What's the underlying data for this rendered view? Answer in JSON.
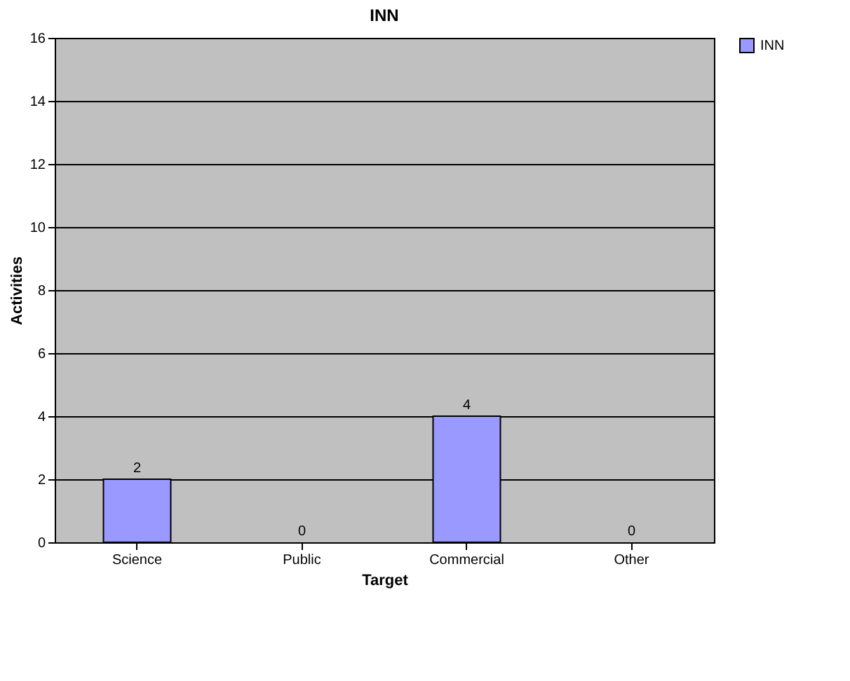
{
  "chart_data": {
    "type": "bar",
    "title": "INN",
    "xlabel": "Target",
    "ylabel": "Activities",
    "categories": [
      "Science",
      "Public",
      "Commercial",
      "Other"
    ],
    "series": [
      {
        "name": "INN",
        "color": "#9999ff",
        "values": [
          2,
          0,
          4,
          0
        ]
      }
    ],
    "ylim": [
      0,
      16
    ],
    "yticks": [
      0,
      2,
      4,
      6,
      8,
      10,
      12,
      14,
      16
    ],
    "grid": "y",
    "legend": "right",
    "data_labels": true
  }
}
